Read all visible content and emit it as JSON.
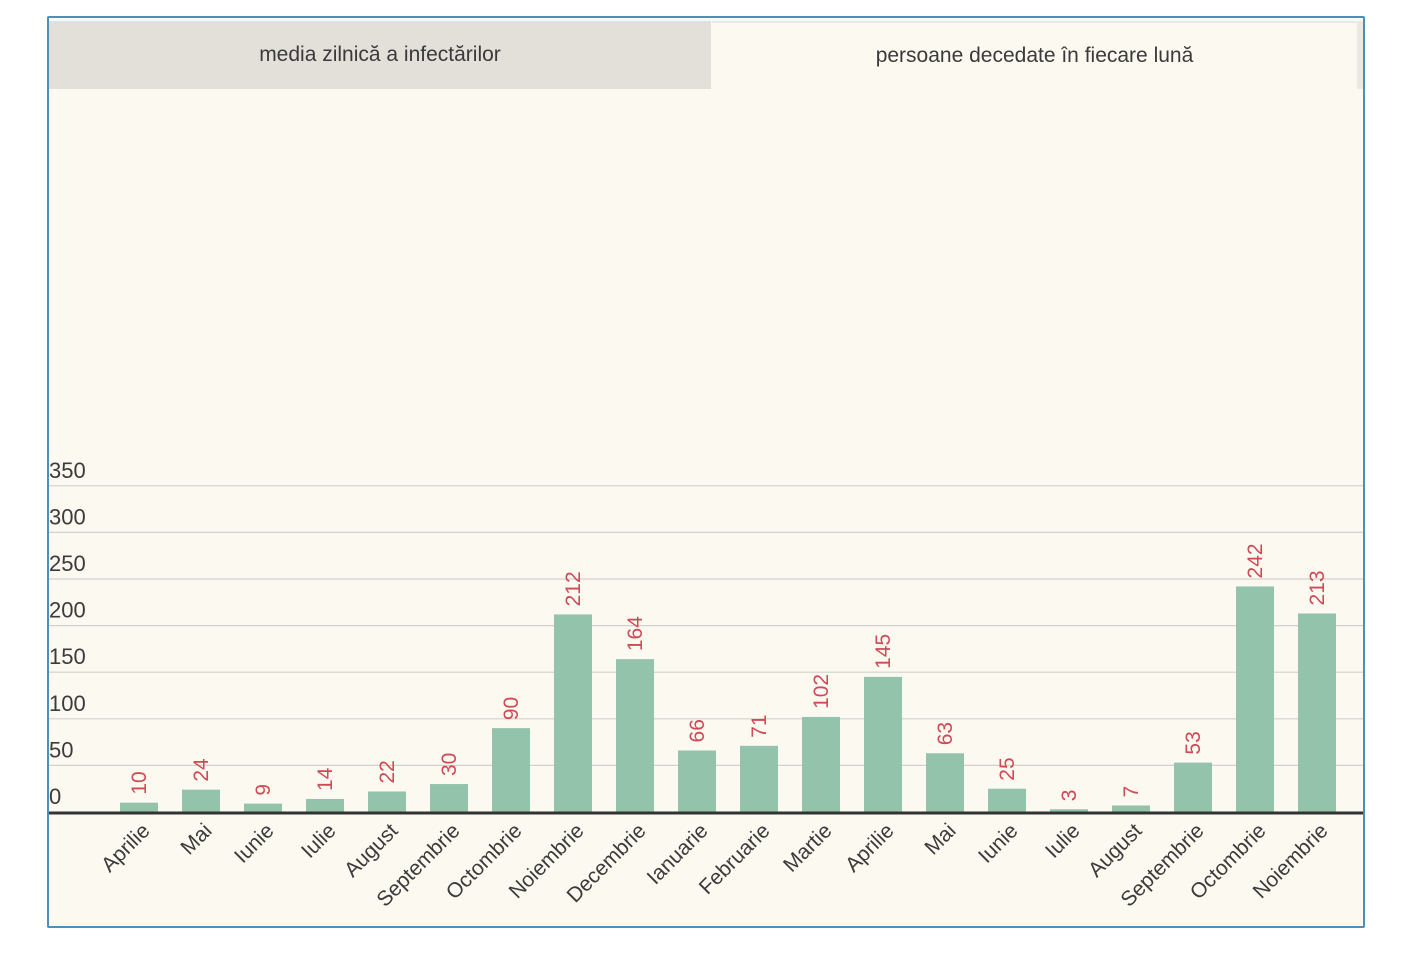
{
  "tabs": [
    {
      "label": "media zilnică a infectărilor",
      "active": false
    },
    {
      "label": "persoane decedate în fiecare lună",
      "active": true
    }
  ],
  "colors": {
    "bar": "#93c4ab",
    "value_label": "#d04a55",
    "frame_border": "#4a90b8",
    "background": "#fcf9f1"
  },
  "chart_data": {
    "type": "bar",
    "title": "persoane decedate în fiecare lună",
    "xlabel": "",
    "ylabel": "",
    "ylim": [
      0,
      350
    ],
    "yticks": [
      0,
      50,
      100,
      150,
      200,
      250,
      300,
      350
    ],
    "grid": true,
    "categories": [
      "Aprilie",
      "Mai",
      "Iunie",
      "Iulie",
      "August",
      "Septembrie",
      "Octombrie",
      "Noiembrie",
      "Decembrie",
      "Ianuarie",
      "Februarie",
      "Martie",
      "Aprilie",
      "Mai",
      "Iunie",
      "Iulie",
      "August",
      "Septembrie",
      "Octombrie",
      "Noiembrie"
    ],
    "values": [
      10,
      24,
      9,
      14,
      22,
      30,
      90,
      212,
      164,
      66,
      71,
      102,
      145,
      63,
      25,
      3,
      7,
      53,
      242,
      213
    ]
  }
}
